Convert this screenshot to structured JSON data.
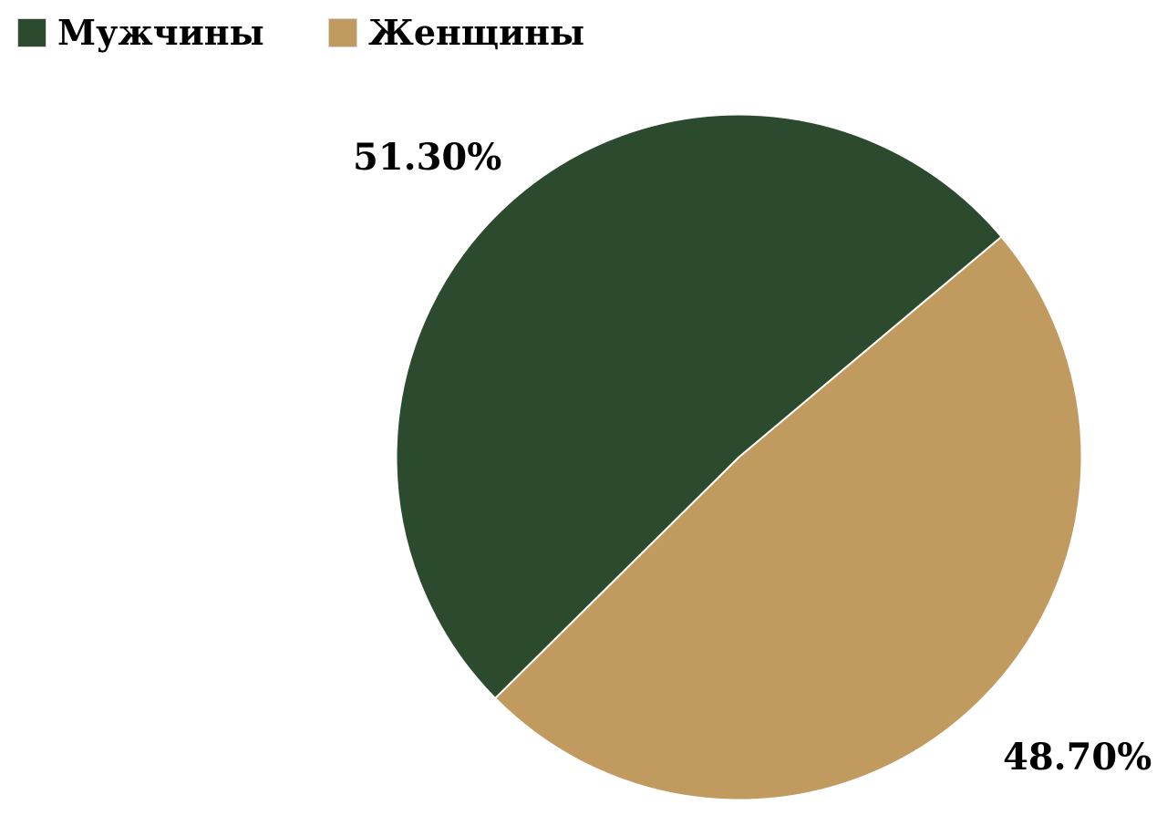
{
  "page": {
    "background_color": "#ffffff",
    "text_color": "#000000"
  },
  "legend": {
    "position": "top-left",
    "items": [
      {
        "label": "Мужчины",
        "color": "#2b4a2e"
      },
      {
        "label": "Женщины",
        "color": "#c09a5e"
      }
    ]
  },
  "chart_data": {
    "type": "pie",
    "title": "",
    "categories": [
      "Мужчины",
      "Женщины"
    ],
    "values": [
      51.3,
      48.7
    ],
    "colors": [
      "#2b4a2e",
      "#c09a5e"
    ],
    "data_labels": [
      "51.30%",
      "48.70%"
    ],
    "start_angle_deg": 225.3,
    "direction": "clockwise",
    "legend_position": "top-left",
    "slice_separator_color": "#ffffff",
    "legend_swatch_border_color": "#d6d6d6"
  }
}
